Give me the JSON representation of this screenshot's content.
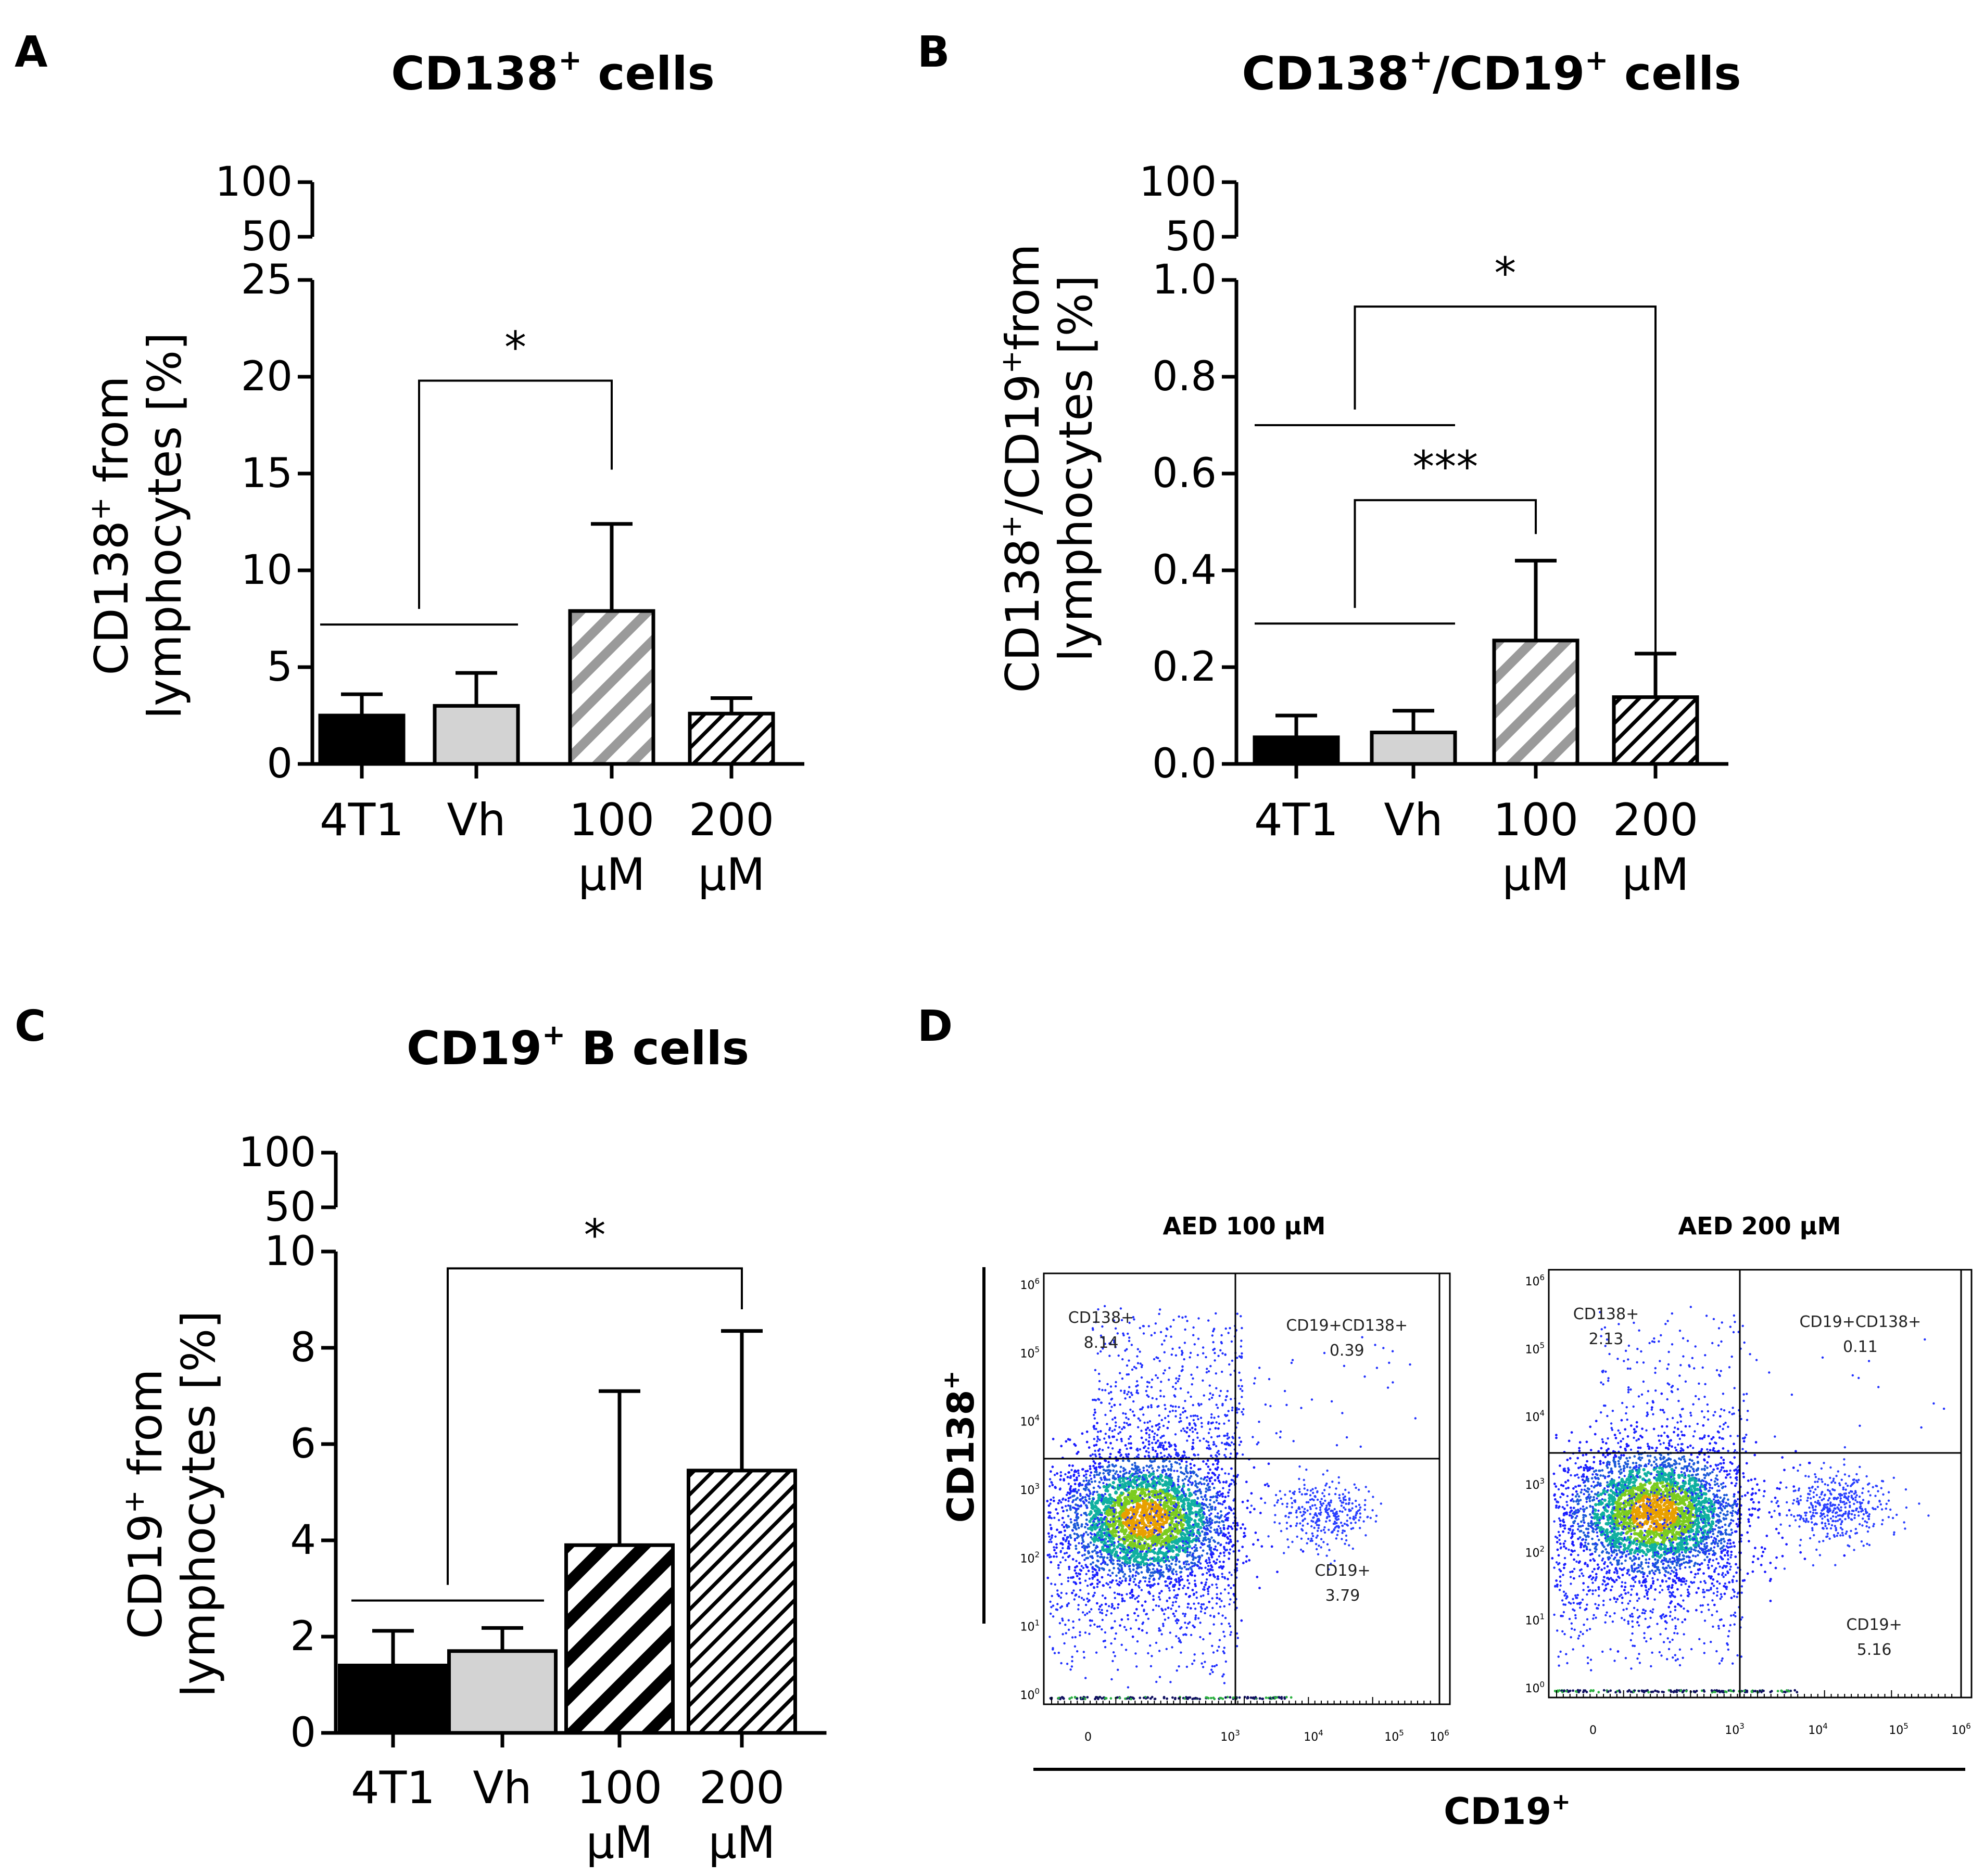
{
  "colors": {
    "axis": "#000000",
    "black_bar": "#000000",
    "grey_bar": "#d3d3d3",
    "hatch_light": "#999999",
    "hatch_dark": "#000000"
  },
  "panels": [
    {
      "letter": "A",
      "title": {
        "main": "CD138",
        "sup": "+",
        "rest": " cells"
      },
      "ylabel_line1": {
        "main": "CD138",
        "sup": "+",
        "rest": " from"
      },
      "ylabel_line2": "lymphocytes [%]",
      "break_ticks": [
        "100",
        "50"
      ],
      "yticks": [
        "0",
        "5",
        "10",
        "15",
        "20",
        "25"
      ],
      "ymax": 25,
      "categories": [
        [
          "4T1"
        ],
        [
          "Vh"
        ],
        [
          "100",
          "µM"
        ],
        [
          "200",
          "µM"
        ]
      ],
      "values": [
        2.5,
        3.0,
        7.9,
        2.6
      ],
      "errors": [
        1.1,
        1.7,
        4.5,
        0.8
      ],
      "styles": [
        "black",
        "grey",
        "hatch-light",
        "hatch-dark"
      ],
      "annotations": [
        {
          "label": "*",
          "from_group": [
            0,
            1
          ],
          "to": 2,
          "group_line_y": 7.2,
          "top_y": 19.8,
          "end_y": 15.2
        }
      ]
    },
    {
      "letter": "B",
      "title": {
        "main": "CD138",
        "sup": "+",
        "mid": "/CD19",
        "sup2": "+",
        "rest": " cells"
      },
      "ylabel_line1": {
        "main": "CD138",
        "sup": "+",
        "mid": "/CD19",
        "sup2": "+",
        "rest": "from"
      },
      "ylabel_line2": "lymphocytes [%]",
      "break_ticks": [
        "100",
        "50"
      ],
      "yticks": [
        "0.0",
        "0.2",
        "0.4",
        "0.6",
        "0.8",
        "1.0"
      ],
      "ymax": 1.0,
      "categories": [
        [
          "4T1"
        ],
        [
          "Vh"
        ],
        [
          "100",
          "µM"
        ],
        [
          "200",
          "µM"
        ]
      ],
      "values": [
        0.055,
        0.065,
        0.255,
        0.138
      ],
      "errors": [
        0.045,
        0.045,
        0.165,
        0.09
      ],
      "styles": [
        "black",
        "grey",
        "hatch-light",
        "hatch-dark"
      ],
      "annotations": [
        {
          "label": "*",
          "from_group": [
            0,
            1
          ],
          "to": 3,
          "group_line_y": 0.7,
          "top_y": 0.945,
          "end_y": 0.23
        },
        {
          "label": "***",
          "from_group": [
            0,
            1
          ],
          "to": 2,
          "group_line_y": 0.29,
          "top_y": 0.545,
          "end_y": 0.475
        }
      ]
    },
    {
      "letter": "C",
      "title": {
        "main": "CD19",
        "sup": "+",
        "rest": " B cells"
      },
      "ylabel_line1": {
        "main": "CD19",
        "sup": "+",
        "rest": " from"
      },
      "ylabel_line2": "lymphocytes [%]",
      "break_ticks": [
        "100",
        "50"
      ],
      "yticks": [
        "0",
        "2",
        "4",
        "6",
        "8",
        "10"
      ],
      "ymax": 10,
      "categories": [
        [
          "4T1"
        ],
        [
          "Vh"
        ],
        [
          "100",
          "µM"
        ],
        [
          "200",
          "µM"
        ]
      ],
      "values": [
        1.4,
        1.7,
        3.9,
        5.45
      ],
      "errors": [
        0.72,
        0.48,
        3.2,
        2.9
      ],
      "styles": [
        "black",
        "grey",
        "hatch-bold",
        "hatch-dark"
      ],
      "annotations": [
        {
          "label": "*",
          "from_group": [
            0,
            1
          ],
          "to": 3,
          "group_line_y": 2.75,
          "top_y": 9.65,
          "end_y": 8.8
        }
      ]
    }
  ],
  "flow": {
    "letter": "D",
    "yaxis": {
      "main": "CD138",
      "sup": "+"
    },
    "xaxis": {
      "main": "CD19",
      "sup": "+"
    },
    "plots": [
      {
        "title": "AED 100 µM",
        "gates": [
          {
            "name": "CD138+",
            "value": "8.14"
          },
          {
            "name": "CD19+CD138+",
            "value": "0.39"
          },
          {
            "name": "CD19+",
            "value": "3.79"
          }
        ],
        "yticks": [
          {
            "base": "10",
            "exp": "6"
          },
          {
            "base": "10",
            "exp": "5"
          },
          {
            "base": "10",
            "exp": "4"
          },
          {
            "base": "10",
            "exp": "3"
          },
          {
            "base": "10",
            "exp": "2"
          },
          {
            "base": "10",
            "exp": "1"
          },
          {
            "base": "10",
            "exp": "0"
          }
        ],
        "xticks": [
          {
            "base": "0",
            "exp": ""
          },
          {
            "base": "10",
            "exp": "3"
          },
          {
            "base": "10",
            "exp": "4"
          },
          {
            "base": "10",
            "exp": "5"
          },
          {
            "base": "10",
            "exp": "6"
          }
        ]
      },
      {
        "title": "AED 200 µM",
        "gates": [
          {
            "name": "CD138+",
            "value": "2.13"
          },
          {
            "name": "CD19+CD138+",
            "value": "0.11"
          },
          {
            "name": "CD19+",
            "value": "5.16"
          }
        ],
        "yticks": [
          {
            "base": "10",
            "exp": "6"
          },
          {
            "base": "10",
            "exp": "5"
          },
          {
            "base": "10",
            "exp": "4"
          },
          {
            "base": "10",
            "exp": "3"
          },
          {
            "base": "10",
            "exp": "2"
          },
          {
            "base": "10",
            "exp": "1"
          },
          {
            "base": "10",
            "exp": "0"
          }
        ],
        "xticks": [
          {
            "base": "0",
            "exp": ""
          },
          {
            "base": "10",
            "exp": "3"
          },
          {
            "base": "10",
            "exp": "4"
          },
          {
            "base": "10",
            "exp": "5"
          },
          {
            "base": "10",
            "exp": "6"
          }
        ]
      }
    ]
  },
  "chart_data": [
    {
      "type": "bar",
      "title": "CD138+ cells",
      "ylabel": "CD138+ from lymphocytes [%]",
      "categories": [
        "4T1",
        "Vh",
        "100 µM",
        "200 µM"
      ],
      "values": [
        2.5,
        3.0,
        7.9,
        2.6
      ],
      "errors": [
        1.1,
        1.7,
        4.5,
        0.8
      ],
      "ylim": [
        0,
        25
      ],
      "broken_axis_upper_ticks": [
        50,
        100
      ],
      "significance": [
        {
          "groups": [
            "4T1",
            "Vh"
          ],
          "vs": "100 µM",
          "label": "*"
        }
      ]
    },
    {
      "type": "bar",
      "title": "CD138+/CD19+ cells",
      "ylabel": "CD138+/CD19+from lymphocytes [%]",
      "categories": [
        "4T1",
        "Vh",
        "100 µM",
        "200 µM"
      ],
      "values": [
        0.055,
        0.065,
        0.255,
        0.138
      ],
      "errors": [
        0.045,
        0.045,
        0.165,
        0.09
      ],
      "ylim": [
        0,
        1.0
      ],
      "broken_axis_upper_ticks": [
        50,
        100
      ],
      "significance": [
        {
          "groups": [
            "4T1",
            "Vh"
          ],
          "vs": "200 µM",
          "label": "*"
        },
        {
          "groups": [
            "4T1",
            "Vh"
          ],
          "vs": "100 µM",
          "label": "***"
        }
      ]
    },
    {
      "type": "bar",
      "title": "CD19+ B cells",
      "ylabel": "CD19+ from lymphocytes [%]",
      "categories": [
        "4T1",
        "Vh",
        "100 µM",
        "200 µM"
      ],
      "values": [
        1.4,
        1.7,
        3.9,
        5.45
      ],
      "errors": [
        0.72,
        0.48,
        3.2,
        2.9
      ],
      "ylim": [
        0,
        10
      ],
      "broken_axis_upper_ticks": [
        50,
        100
      ],
      "significance": [
        {
          "groups": [
            "4T1",
            "Vh"
          ],
          "vs": "200 µM",
          "label": "*"
        }
      ]
    },
    {
      "type": "scatter",
      "title": "AED 100 µM",
      "xlabel": "CD19+",
      "ylabel": "CD138+",
      "quadrants": {
        "CD138+": 8.14,
        "CD19+CD138+": 0.39,
        "CD19+": 3.79
      }
    },
    {
      "type": "scatter",
      "title": "AED 200 µM",
      "xlabel": "CD19+",
      "ylabel": "CD138+",
      "quadrants": {
        "CD138+": 2.13,
        "CD19+CD138+": 0.11,
        "CD19+": 5.16
      }
    }
  ]
}
